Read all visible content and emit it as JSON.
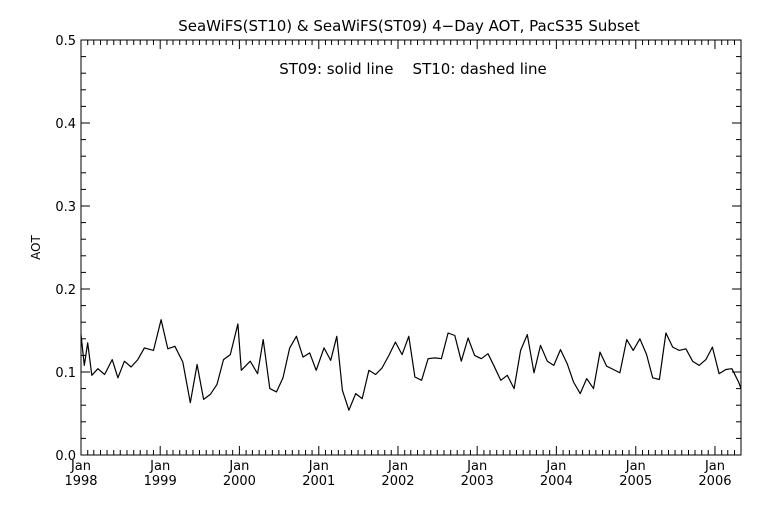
{
  "chart_data": {
    "type": "line",
    "title": "SeaWiFS(ST10) & SeaWiFS(ST09) 4−Day AOT, PacS35 Subset",
    "annotation": "ST09: solid line    ST10: dashed line",
    "xlabel": "",
    "ylabel": "AOT",
    "xlim": [
      "1998-01-01",
      "2006-05-01"
    ],
    "ylim": [
      0.0,
      0.5
    ],
    "y_ticks": [
      0.0,
      0.1,
      0.2,
      0.3,
      0.4,
      0.5
    ],
    "y_tick_labels": [
      "0.0",
      "0.1",
      "0.2",
      "0.3",
      "0.4",
      "0.5"
    ],
    "x_ticks": [
      {
        "date": "1998-01-01",
        "month": "Jan",
        "year": "1998"
      },
      {
        "date": "1999-01-01",
        "month": "Jan",
        "year": "1999"
      },
      {
        "date": "2000-01-01",
        "month": "Jan",
        "year": "2000"
      },
      {
        "date": "2001-01-01",
        "month": "Jan",
        "year": "2001"
      },
      {
        "date": "2002-01-01",
        "month": "Jan",
        "year": "2002"
      },
      {
        "date": "2003-01-01",
        "month": "Jan",
        "year": "2003"
      },
      {
        "date": "2004-01-01",
        "month": "Jan",
        "year": "2004"
      },
      {
        "date": "2005-01-01",
        "month": "Jan",
        "year": "2005"
      },
      {
        "date": "2006-01-01",
        "month": "Jan",
        "year": "2006"
      }
    ],
    "grid": false,
    "legend": "none",
    "series": [
      {
        "name": "ST09",
        "style": "solid",
        "color": "#000000",
        "points": [
          [
            "1998-01-01",
            0.145
          ],
          [
            "1998-01-16",
            0.108
          ],
          [
            "1998-02-01",
            0.135
          ],
          [
            "1998-02-20",
            0.096
          ],
          [
            "1998-03-20",
            0.104
          ],
          [
            "1998-04-20",
            0.097
          ],
          [
            "1998-05-25",
            0.115
          ],
          [
            "1998-06-20",
            0.093
          ],
          [
            "1998-07-20",
            0.113
          ],
          [
            "1998-08-20",
            0.106
          ],
          [
            "1998-09-20",
            0.115
          ],
          [
            "1998-10-20",
            0.129
          ],
          [
            "1998-12-01",
            0.126
          ],
          [
            "1999-01-05",
            0.163
          ],
          [
            "1999-02-05",
            0.128
          ],
          [
            "1999-03-10",
            0.131
          ],
          [
            "1999-04-15",
            0.112
          ],
          [
            "1999-05-20",
            0.063
          ],
          [
            "1999-06-20",
            0.109
          ],
          [
            "1999-07-20",
            0.067
          ],
          [
            "1999-08-20",
            0.073
          ],
          [
            "1999-09-20",
            0.085
          ],
          [
            "1999-10-20",
            0.115
          ],
          [
            "1999-11-20",
            0.121
          ],
          [
            "1999-12-25",
            0.158
          ],
          [
            "2000-01-10",
            0.102
          ],
          [
            "2000-02-20",
            0.113
          ],
          [
            "2000-03-25",
            0.098
          ],
          [
            "2000-04-20",
            0.139
          ],
          [
            "2000-05-20",
            0.08
          ],
          [
            "2000-06-20",
            0.076
          ],
          [
            "2000-07-20",
            0.093
          ],
          [
            "2000-08-20",
            0.129
          ],
          [
            "2000-09-20",
            0.143
          ],
          [
            "2000-10-20",
            0.118
          ],
          [
            "2000-11-20",
            0.123
          ],
          [
            "2000-12-20",
            0.102
          ],
          [
            "2001-01-25",
            0.129
          ],
          [
            "2001-02-25",
            0.114
          ],
          [
            "2001-03-25",
            0.143
          ],
          [
            "2001-04-20",
            0.078
          ],
          [
            "2001-05-20",
            0.054
          ],
          [
            "2001-06-20",
            0.074
          ],
          [
            "2001-07-20",
            0.068
          ],
          [
            "2001-08-20",
            0.102
          ],
          [
            "2001-09-20",
            0.097
          ],
          [
            "2001-10-20",
            0.105
          ],
          [
            "2001-11-20",
            0.12
          ],
          [
            "2001-12-20",
            0.136
          ],
          [
            "2002-01-20",
            0.121
          ],
          [
            "2002-02-20",
            0.143
          ],
          [
            "2002-03-20",
            0.094
          ],
          [
            "2002-04-20",
            0.09
          ],
          [
            "2002-05-20",
            0.116
          ],
          [
            "2002-06-20",
            0.117
          ],
          [
            "2002-07-20",
            0.116
          ],
          [
            "2002-08-20",
            0.147
          ],
          [
            "2002-09-20",
            0.144
          ],
          [
            "2002-10-20",
            0.113
          ],
          [
            "2002-11-20",
            0.141
          ],
          [
            "2002-12-20",
            0.12
          ],
          [
            "2003-01-20",
            0.116
          ],
          [
            "2003-02-20",
            0.122
          ],
          [
            "2003-03-20",
            0.107
          ],
          [
            "2003-04-20",
            0.09
          ],
          [
            "2003-05-20",
            0.096
          ],
          [
            "2003-06-20",
            0.08
          ],
          [
            "2003-07-20",
            0.126
          ],
          [
            "2003-08-20",
            0.145
          ],
          [
            "2003-09-20",
            0.099
          ],
          [
            "2003-10-20",
            0.132
          ],
          [
            "2003-11-20",
            0.113
          ],
          [
            "2003-12-20",
            0.108
          ],
          [
            "2004-01-20",
            0.127
          ],
          [
            "2004-02-20",
            0.11
          ],
          [
            "2004-03-20",
            0.088
          ],
          [
            "2004-04-20",
            0.074
          ],
          [
            "2004-05-20",
            0.092
          ],
          [
            "2004-06-20",
            0.08
          ],
          [
            "2004-07-20",
            0.124
          ],
          [
            "2004-08-20",
            0.107
          ],
          [
            "2004-09-20",
            0.103
          ],
          [
            "2004-10-20",
            0.099
          ],
          [
            "2004-11-20",
            0.139
          ],
          [
            "2004-12-20",
            0.126
          ],
          [
            "2005-01-20",
            0.14
          ],
          [
            "2005-02-20",
            0.121
          ],
          [
            "2005-03-20",
            0.093
          ],
          [
            "2005-04-20",
            0.091
          ],
          [
            "2005-05-20",
            0.147
          ],
          [
            "2005-06-20",
            0.13
          ],
          [
            "2005-07-20",
            0.126
          ],
          [
            "2005-08-20",
            0.128
          ],
          [
            "2005-09-20",
            0.113
          ],
          [
            "2005-10-20",
            0.108
          ],
          [
            "2005-11-20",
            0.115
          ],
          [
            "2005-12-20",
            0.13
          ],
          [
            "2006-01-20",
            0.098
          ],
          [
            "2006-02-20",
            0.103
          ],
          [
            "2006-03-20",
            0.104
          ],
          [
            "2006-04-20",
            0.088
          ],
          [
            "2006-05-01",
            0.08
          ]
        ]
      }
    ]
  }
}
